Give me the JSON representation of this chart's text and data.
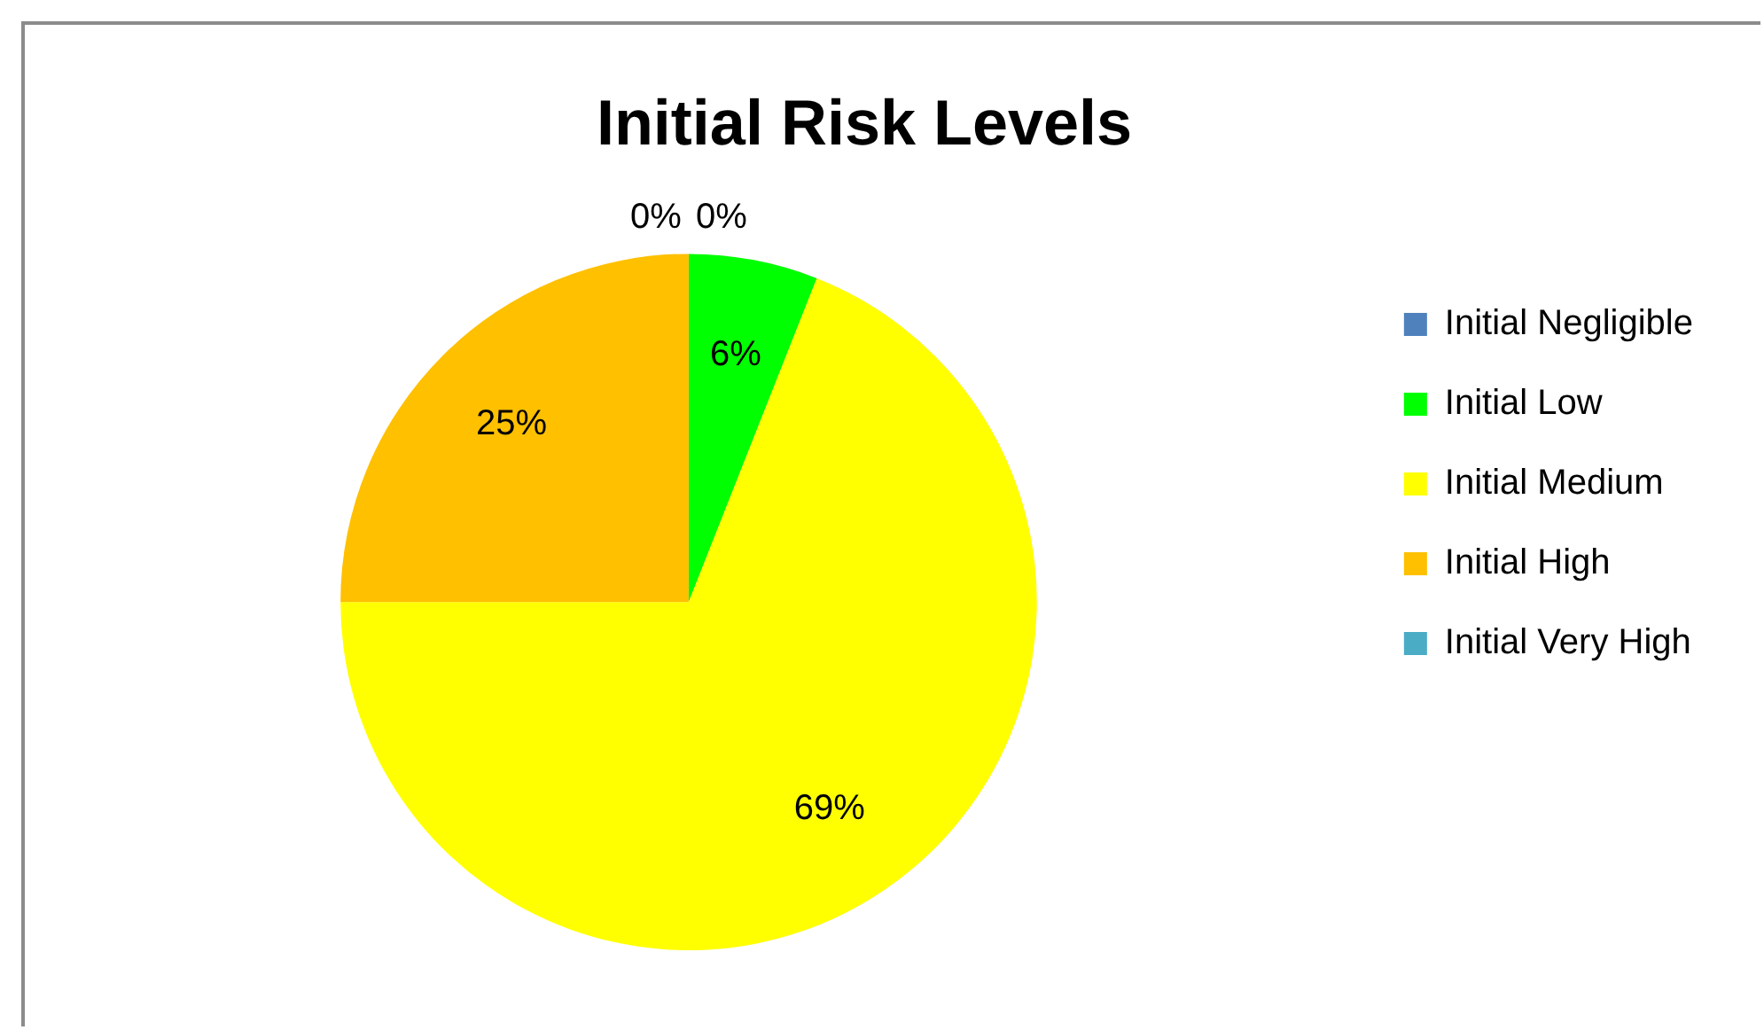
{
  "chart_data": {
    "type": "pie",
    "title": "Initial Risk Levels",
    "categories": [
      "Initial Negligible",
      "Initial Low",
      "Initial Medium",
      "Initial High",
      "Initial Very High"
    ],
    "values": [
      0,
      6,
      69,
      25,
      0
    ],
    "colors": [
      "#4f81bd",
      "#00ff00",
      "#ffff00",
      "#ffc000",
      "#4bacc6"
    ],
    "value_labels": [
      "0%",
      "6%",
      "69%",
      "25%",
      "0%"
    ],
    "legend": "right"
  }
}
